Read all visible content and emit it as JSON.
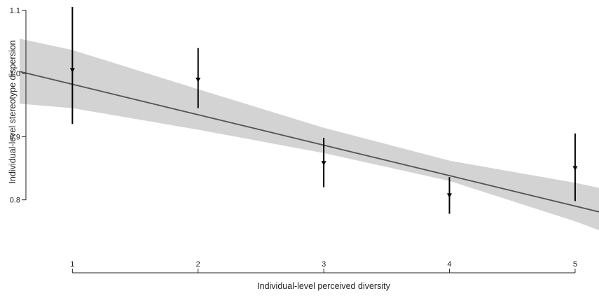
{
  "chart_data": {
    "type": "scatter",
    "title": "",
    "xlabel": "Individual-level perceived diversity",
    "ylabel": "Individual-level stereotype dispersion",
    "x_ticks": [
      1,
      2,
      3,
      4,
      5
    ],
    "y_ticks": [
      0.8,
      0.9,
      1.0,
      1.1
    ],
    "y_tick_labels": [
      "0.8",
      "0.9",
      "1.0",
      "1.1"
    ],
    "xlim": [
      0.58,
      5.19
    ],
    "ylim": [
      0.72,
      1.105
    ],
    "grid": false,
    "legend": "none",
    "points": [
      {
        "x": 1,
        "y": 1.005,
        "lower": 0.92,
        "upper": 1.105
      },
      {
        "x": 2,
        "y": 0.99,
        "lower": 0.945,
        "upper": 1.04
      },
      {
        "x": 3,
        "y": 0.858,
        "lower": 0.82,
        "upper": 0.898
      },
      {
        "x": 4,
        "y": 0.807,
        "lower": 0.778,
        "upper": 0.836
      },
      {
        "x": 5,
        "y": 0.85,
        "lower": 0.798,
        "upper": 0.905
      }
    ],
    "fit_line": {
      "x": [
        0.58,
        5.19
      ],
      "y": [
        1.003,
        0.781
      ]
    },
    "confidence_band": {
      "x": [
        0.58,
        1.0,
        2.0,
        3.0,
        4.0,
        5.0,
        5.19
      ],
      "lower": [
        0.952,
        0.945,
        0.911,
        0.874,
        0.83,
        0.766,
        0.752
      ],
      "upper": [
        1.055,
        1.037,
        0.975,
        0.914,
        0.862,
        0.827,
        0.819
      ]
    },
    "colors": {
      "line": "#555555",
      "band": "#d3d3d3",
      "points": "#000000",
      "axis": "#222222"
    }
  }
}
